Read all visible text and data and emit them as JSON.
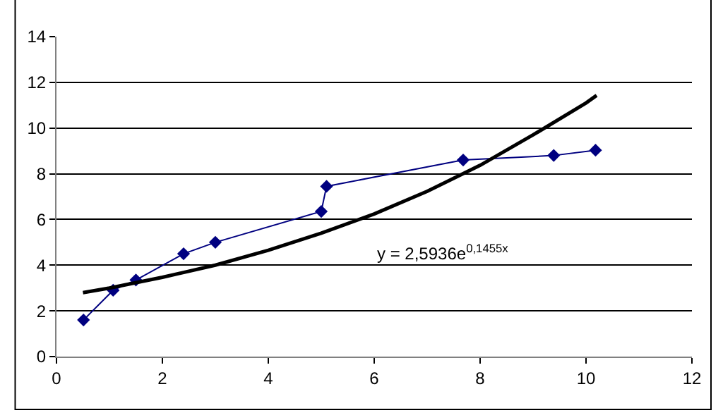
{
  "chart_data": {
    "type": "line",
    "xlim": [
      0,
      12
    ],
    "xticks": [
      0,
      2,
      4,
      6,
      8,
      10,
      12
    ],
    "ylim": [
      0,
      14
    ],
    "yticks": [
      0,
      2,
      4,
      6,
      8,
      10,
      12,
      14
    ],
    "grid": "y",
    "series": [
      {
        "color": "#000080",
        "marker": "diamond",
        "x": [
          0.51,
          1.07,
          1.5,
          2.4,
          3.0,
          5.0,
          5.1,
          7.68,
          9.39,
          10.18
        ],
        "values": [
          1.6,
          2.9,
          3.35,
          4.5,
          5.0,
          6.35,
          7.45,
          8.6,
          8.8,
          9.03
        ]
      },
      {
        "color": "#000000",
        "marker": "none",
        "x": [
          0.5,
          1,
          2,
          3,
          4,
          5,
          6,
          7,
          8,
          9,
          10,
          10.2
        ],
        "values": [
          2.8,
          3.0,
          3.47,
          4.0,
          4.65,
          5.4,
          6.24,
          7.23,
          8.37,
          9.7,
          11.1,
          11.43
        ]
      }
    ],
    "annotations": [
      "y = 2,5936e$^{0,1455x}$"
    ]
  }
}
